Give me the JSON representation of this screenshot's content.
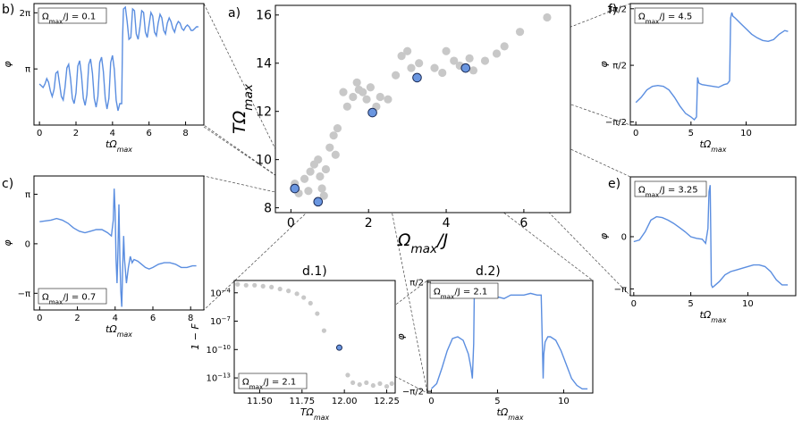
{
  "chart_data": [
    {
      "id": "a",
      "panel_label": "a)",
      "type": "scatter",
      "xlabel": "Ω_max/J",
      "ylabel": "TΩ_max",
      "xlim": [
        -0.4,
        7.2
      ],
      "ylim": [
        7.8,
        16.4
      ],
      "xticks": [
        {
          "v": 0,
          "t": "0"
        },
        {
          "v": 2,
          "t": "2"
        },
        {
          "v": 4,
          "t": "4"
        },
        {
          "v": 6,
          "t": "6"
        }
      ],
      "yticks": [
        {
          "v": 8,
          "t": "8"
        },
        {
          "v": 10,
          "t": "10"
        },
        {
          "v": 12,
          "t": "12"
        },
        {
          "v": 14,
          "t": "14"
        },
        {
          "v": 16,
          "t": "16"
        }
      ],
      "grey_points": [
        [
          0.1,
          9.0
        ],
        [
          0.2,
          8.6
        ],
        [
          0.35,
          9.2
        ],
        [
          0.45,
          8.7
        ],
        [
          0.5,
          9.5
        ],
        [
          0.6,
          9.8
        ],
        [
          0.7,
          10.0
        ],
        [
          0.75,
          9.3
        ],
        [
          0.8,
          8.8
        ],
        [
          0.85,
          8.5
        ],
        [
          0.9,
          9.6
        ],
        [
          1.0,
          10.5
        ],
        [
          1.1,
          11.0
        ],
        [
          1.15,
          10.2
        ],
        [
          1.2,
          11.3
        ],
        [
          1.35,
          12.8
        ],
        [
          1.45,
          12.2
        ],
        [
          1.6,
          12.6
        ],
        [
          1.7,
          13.2
        ],
        [
          1.75,
          12.9
        ],
        [
          1.85,
          12.8
        ],
        [
          1.95,
          12.5
        ],
        [
          2.05,
          13.0
        ],
        [
          2.2,
          12.2
        ],
        [
          2.3,
          12.6
        ],
        [
          2.5,
          12.5
        ],
        [
          2.7,
          13.5
        ],
        [
          2.85,
          14.3
        ],
        [
          3.0,
          14.5
        ],
        [
          3.1,
          13.8
        ],
        [
          3.3,
          14.0
        ],
        [
          3.7,
          13.8
        ],
        [
          3.9,
          13.6
        ],
        [
          4.0,
          14.5
        ],
        [
          4.2,
          14.1
        ],
        [
          4.35,
          13.9
        ],
        [
          4.6,
          14.2
        ],
        [
          4.7,
          13.7
        ],
        [
          5.0,
          14.1
        ],
        [
          5.3,
          14.4
        ],
        [
          5.5,
          14.7
        ],
        [
          5.9,
          15.3
        ],
        [
          6.6,
          15.9
        ]
      ],
      "highlight_points": [
        [
          0.1,
          8.8
        ],
        [
          0.7,
          8.25
        ],
        [
          2.1,
          11.95
        ],
        [
          3.25,
          13.4
        ],
        [
          4.5,
          13.8
        ]
      ]
    },
    {
      "id": "b",
      "panel_label": "b)",
      "type": "line",
      "annotation": "Ω_max/J = 0.1",
      "xlabel": "tΩ_max",
      "ylabel": "φ",
      "xlim": [
        -0.3,
        9.0
      ],
      "ylim": [
        0,
        6.8
      ],
      "xticks": [
        {
          "v": 0,
          "t": "0"
        },
        {
          "v": 2,
          "t": "2"
        },
        {
          "v": 4,
          "t": "4"
        },
        {
          "v": 6,
          "t": "6"
        },
        {
          "v": 8,
          "t": "8"
        }
      ],
      "yticks": [
        {
          "v": 3.1416,
          "t": "π"
        },
        {
          "v": 6.2832,
          "t": "2π"
        }
      ],
      "x": [
        0,
        0.1,
        0.2,
        0.3,
        0.4,
        0.5,
        0.6,
        0.7,
        0.8,
        0.9,
        1.0,
        1.1,
        1.2,
        1.3,
        1.4,
        1.5,
        1.6,
        1.7,
        1.8,
        1.9,
        2.0,
        2.1,
        2.2,
        2.3,
        2.4,
        2.5,
        2.6,
        2.7,
        2.8,
        2.9,
        3.0,
        3.1,
        3.2,
        3.3,
        3.4,
        3.5,
        3.6,
        3.7,
        3.8,
        3.9,
        4.0,
        4.1,
        4.2,
        4.3,
        4.4,
        4.5,
        4.55,
        4.6,
        4.7,
        4.8,
        4.9,
        5.0,
        5.1,
        5.2,
        5.3,
        5.4,
        5.5,
        5.6,
        5.7,
        5.8,
        5.9,
        6.0,
        6.1,
        6.2,
        6.3,
        6.4,
        6.5,
        6.6,
        6.7,
        6.8,
        6.9,
        7.0,
        7.1,
        7.2,
        7.3,
        7.4,
        7.5,
        7.6,
        7.7,
        7.8,
        7.9,
        8.0,
        8.1,
        8.2,
        8.3,
        8.4,
        8.5,
        8.6,
        8.7
      ],
      "y": [
        2.3,
        2.2,
        2.1,
        2.3,
        2.6,
        2.4,
        1.9,
        1.6,
        2.0,
        2.9,
        3.0,
        2.3,
        1.6,
        1.4,
        2.1,
        3.2,
        3.4,
        2.6,
        1.5,
        1.2,
        1.8,
        3.3,
        3.6,
        2.8,
        1.5,
        1.1,
        1.7,
        3.4,
        3.7,
        2.9,
        1.5,
        1.0,
        1.6,
        3.5,
        3.8,
        3.0,
        1.5,
        0.9,
        1.5,
        3.5,
        3.9,
        3.1,
        1.4,
        0.8,
        1.2,
        1.2,
        4.9,
        6.5,
        6.6,
        5.8,
        4.8,
        4.9,
        6.5,
        6.4,
        5.1,
        4.8,
        5.5,
        6.4,
        6.3,
        5.2,
        4.9,
        5.6,
        6.3,
        6.1,
        5.2,
        5.0,
        5.7,
        6.2,
        6.0,
        5.3,
        5.1,
        5.7,
        6.0,
        5.8,
        5.4,
        5.2,
        5.6,
        5.8,
        5.7,
        5.4,
        5.3,
        5.5,
        5.6,
        5.5,
        5.3,
        5.3,
        5.4,
        5.5,
        5.5
      ]
    },
    {
      "id": "c",
      "panel_label": "c)",
      "type": "line",
      "annotation": "Ω_max/J = 0.7",
      "xlabel": "tΩ_max",
      "ylabel": "φ",
      "xlim": [
        -0.3,
        8.7
      ],
      "ylim": [
        -4.2,
        4.3
      ],
      "xticks": [
        {
          "v": 0,
          "t": "0"
        },
        {
          "v": 2,
          "t": "2"
        },
        {
          "v": 4,
          "t": "4"
        },
        {
          "v": 6,
          "t": "6"
        },
        {
          "v": 8,
          "t": "8"
        }
      ],
      "yticks": [
        {
          "v": -3.1416,
          "t": "−π"
        },
        {
          "v": 0,
          "t": "0"
        },
        {
          "v": 3.1416,
          "t": "π"
        }
      ],
      "x": [
        0,
        0.3,
        0.6,
        0.9,
        1.2,
        1.5,
        1.8,
        2.1,
        2.4,
        2.7,
        3.0,
        3.3,
        3.6,
        3.8,
        3.9,
        3.95,
        4.0,
        4.05,
        4.1,
        4.15,
        4.2,
        4.25,
        4.3,
        4.35,
        4.4,
        4.45,
        4.5,
        4.6,
        4.7,
        4.8,
        4.9,
        5.0,
        5.2,
        5.4,
        5.6,
        5.8,
        6.0,
        6.3,
        6.6,
        6.9,
        7.2,
        7.5,
        7.8,
        8.1,
        8.3
      ],
      "y": [
        1.4,
        1.45,
        1.5,
        1.6,
        1.5,
        1.3,
        1.0,
        0.8,
        0.7,
        0.8,
        0.9,
        0.9,
        0.7,
        0.5,
        1.5,
        3.5,
        2.0,
        -1.0,
        -2.5,
        -0.5,
        2.5,
        -1.0,
        -3.0,
        -4.0,
        -1.5,
        0.5,
        -1.0,
        -2.5,
        -1.5,
        -0.8,
        -1.2,
        -1.0,
        -1.1,
        -1.3,
        -1.5,
        -1.6,
        -1.5,
        -1.3,
        -1.2,
        -1.2,
        -1.3,
        -1.5,
        -1.5,
        -1.4,
        -1.4
      ]
    },
    {
      "id": "d1",
      "panel_label": "d.1)",
      "type": "scatter",
      "annotation": "Ω_max/J = 2.1",
      "xlabel": "TΩ_max",
      "ylabel": "1 − F",
      "yscale": "log",
      "xlim": [
        11.35,
        12.3
      ],
      "ylim": [
        -14.6,
        -2.7
      ],
      "xticks": [
        {
          "v": 11.5,
          "t": "11.50"
        },
        {
          "v": 11.75,
          "t": "11.75"
        },
        {
          "v": 12.0,
          "t": "12.00"
        },
        {
          "v": 12.25,
          "t": "12.25"
        }
      ],
      "yticks": [
        {
          "v": -4,
          "t": "10^-4"
        },
        {
          "v": -7,
          "t": "10^-7"
        },
        {
          "v": -10,
          "t": "10^-10"
        },
        {
          "v": -13,
          "t": "10^-13"
        }
      ],
      "grey_points": [
        [
          11.37,
          -3.1
        ],
        [
          11.42,
          -3.2
        ],
        [
          11.47,
          -3.2
        ],
        [
          11.52,
          -3.3
        ],
        [
          11.57,
          -3.4
        ],
        [
          11.62,
          -3.6
        ],
        [
          11.67,
          -3.8
        ],
        [
          11.72,
          -4.1
        ],
        [
          11.76,
          -4.5
        ],
        [
          11.8,
          -5.1
        ],
        [
          11.84,
          -6.2
        ],
        [
          11.88,
          -8.0
        ],
        [
          12.02,
          -12.7
        ],
        [
          12.05,
          -13.5
        ],
        [
          12.09,
          -13.7
        ],
        [
          12.13,
          -13.5
        ],
        [
          12.17,
          -13.8
        ],
        [
          12.21,
          -13.6
        ],
        [
          12.25,
          -13.9
        ],
        [
          12.28,
          -13.6
        ]
      ],
      "highlight_points": [
        [
          11.97,
          -9.8
        ]
      ]
    },
    {
      "id": "d2",
      "panel_label": "d.2)",
      "type": "line",
      "annotation": "Ω_max/J = 2.1",
      "xlabel": "tΩ_max",
      "ylabel": "φ",
      "xlim": [
        -0.3,
        12.2
      ],
      "ylim": [
        -1.62,
        1.62
      ],
      "xticks": [
        {
          "v": 0,
          "t": "0"
        },
        {
          "v": 5,
          "t": "5"
        },
        {
          "v": 10,
          "t": "10"
        }
      ],
      "yticks": [
        {
          "v": -1.5708,
          "t": "−π/2"
        },
        {
          "v": 1.5708,
          "t": "π/2"
        }
      ],
      "x": [
        0,
        0.4,
        0.8,
        1.2,
        1.6,
        2.0,
        2.4,
        2.8,
        3.0,
        3.1,
        3.2,
        3.25,
        3.3,
        3.4,
        3.6,
        4.0,
        4.5,
        5.0,
        5.5,
        6.0,
        6.5,
        7.0,
        7.5,
        8.0,
        8.3,
        8.45,
        8.5,
        8.6,
        8.8,
        9.0,
        9.4,
        9.8,
        10.2,
        10.6,
        11.0,
        11.4,
        11.8
      ],
      "y": [
        -1.5,
        -1.35,
        -0.9,
        -0.4,
        -0.05,
        0.0,
        -0.1,
        -0.5,
        -0.9,
        -1.2,
        -0.2,
        1.3,
        1.25,
        1.2,
        1.15,
        1.2,
        1.2,
        1.15,
        1.1,
        1.2,
        1.2,
        1.2,
        1.25,
        1.2,
        1.2,
        -1.2,
        -0.5,
        -0.15,
        0.0,
        0.0,
        -0.1,
        -0.4,
        -0.8,
        -1.2,
        -1.4,
        -1.5,
        -1.5
      ]
    },
    {
      "id": "e",
      "panel_label": "e)",
      "type": "line",
      "annotation": "Ω_max/J = 3.25",
      "xlabel": "tΩ_max",
      "ylabel": "φ",
      "xlim": [
        -0.3,
        14.2
      ],
      "ylim": [
        -3.55,
        3.6
      ],
      "xticks": [
        {
          "v": 0,
          "t": "0"
        },
        {
          "v": 5,
          "t": "5"
        },
        {
          "v": 10,
          "t": "10"
        }
      ],
      "yticks": [
        {
          "v": -3.1416,
          "t": "−π"
        },
        {
          "v": 0,
          "t": "0"
        }
      ],
      "x": [
        0,
        0.5,
        1.0,
        1.5,
        2.0,
        2.5,
        3.0,
        3.5,
        4.0,
        4.5,
        5.0,
        5.5,
        6.0,
        6.3,
        6.5,
        6.6,
        6.7,
        6.75,
        6.8,
        6.9,
        7.0,
        7.5,
        8.0,
        8.5,
        9.0,
        9.5,
        10.0,
        10.5,
        11.0,
        11.5,
        12.0,
        12.5,
        13.0,
        13.5
      ],
      "y": [
        -0.3,
        -0.2,
        0.3,
        1.0,
        1.2,
        1.15,
        1.0,
        0.8,
        0.55,
        0.3,
        0.0,
        -0.1,
        -0.15,
        -0.4,
        0.5,
        2.7,
        3.1,
        0.5,
        -2.9,
        -3.05,
        -3.0,
        -2.7,
        -2.3,
        -2.1,
        -2.0,
        -1.9,
        -1.8,
        -1.7,
        -1.7,
        -1.8,
        -2.1,
        -2.6,
        -2.9,
        -2.9
      ]
    },
    {
      "id": "f",
      "panel_label": "f)",
      "type": "line",
      "annotation": "Ω_max/J = 4.5",
      "xlabel": "tΩ_max",
      "ylabel": "φ",
      "xlim": [
        -0.5,
        14.5
      ],
      "ylim": [
        -1.75,
        5.0
      ],
      "xticks": [
        {
          "v": 0,
          "t": "0"
        },
        {
          "v": 5,
          "t": "5"
        },
        {
          "v": 10,
          "t": "10"
        }
      ],
      "yticks": [
        {
          "v": -1.5708,
          "t": "−π/2"
        },
        {
          "v": 1.5708,
          "t": "π/2"
        },
        {
          "v": 4.7124,
          "t": "3π/2"
        }
      ],
      "x": [
        0,
        0.5,
        1.0,
        1.5,
        2.0,
        2.5,
        3.0,
        3.5,
        4.0,
        4.5,
        5.0,
        5.3,
        5.5,
        5.6,
        5.7,
        5.8,
        6.0,
        6.5,
        7.0,
        7.5,
        8.0,
        8.3,
        8.5,
        8.6,
        8.7,
        8.8,
        9.0,
        9.5,
        10.0,
        10.5,
        11.0,
        11.5,
        12.0,
        12.5,
        13.0,
        13.5,
        13.8
      ],
      "y": [
        -0.5,
        -0.2,
        0.2,
        0.4,
        0.45,
        0.4,
        0.2,
        -0.2,
        -0.7,
        -1.1,
        -1.3,
        -1.45,
        -1.3,
        0.9,
        0.6,
        0.55,
        0.5,
        0.45,
        0.4,
        0.35,
        0.5,
        0.55,
        0.7,
        4.2,
        4.5,
        4.3,
        4.2,
        3.9,
        3.6,
        3.3,
        3.1,
        2.95,
        2.9,
        3.0,
        3.3,
        3.5,
        3.45
      ]
    }
  ]
}
